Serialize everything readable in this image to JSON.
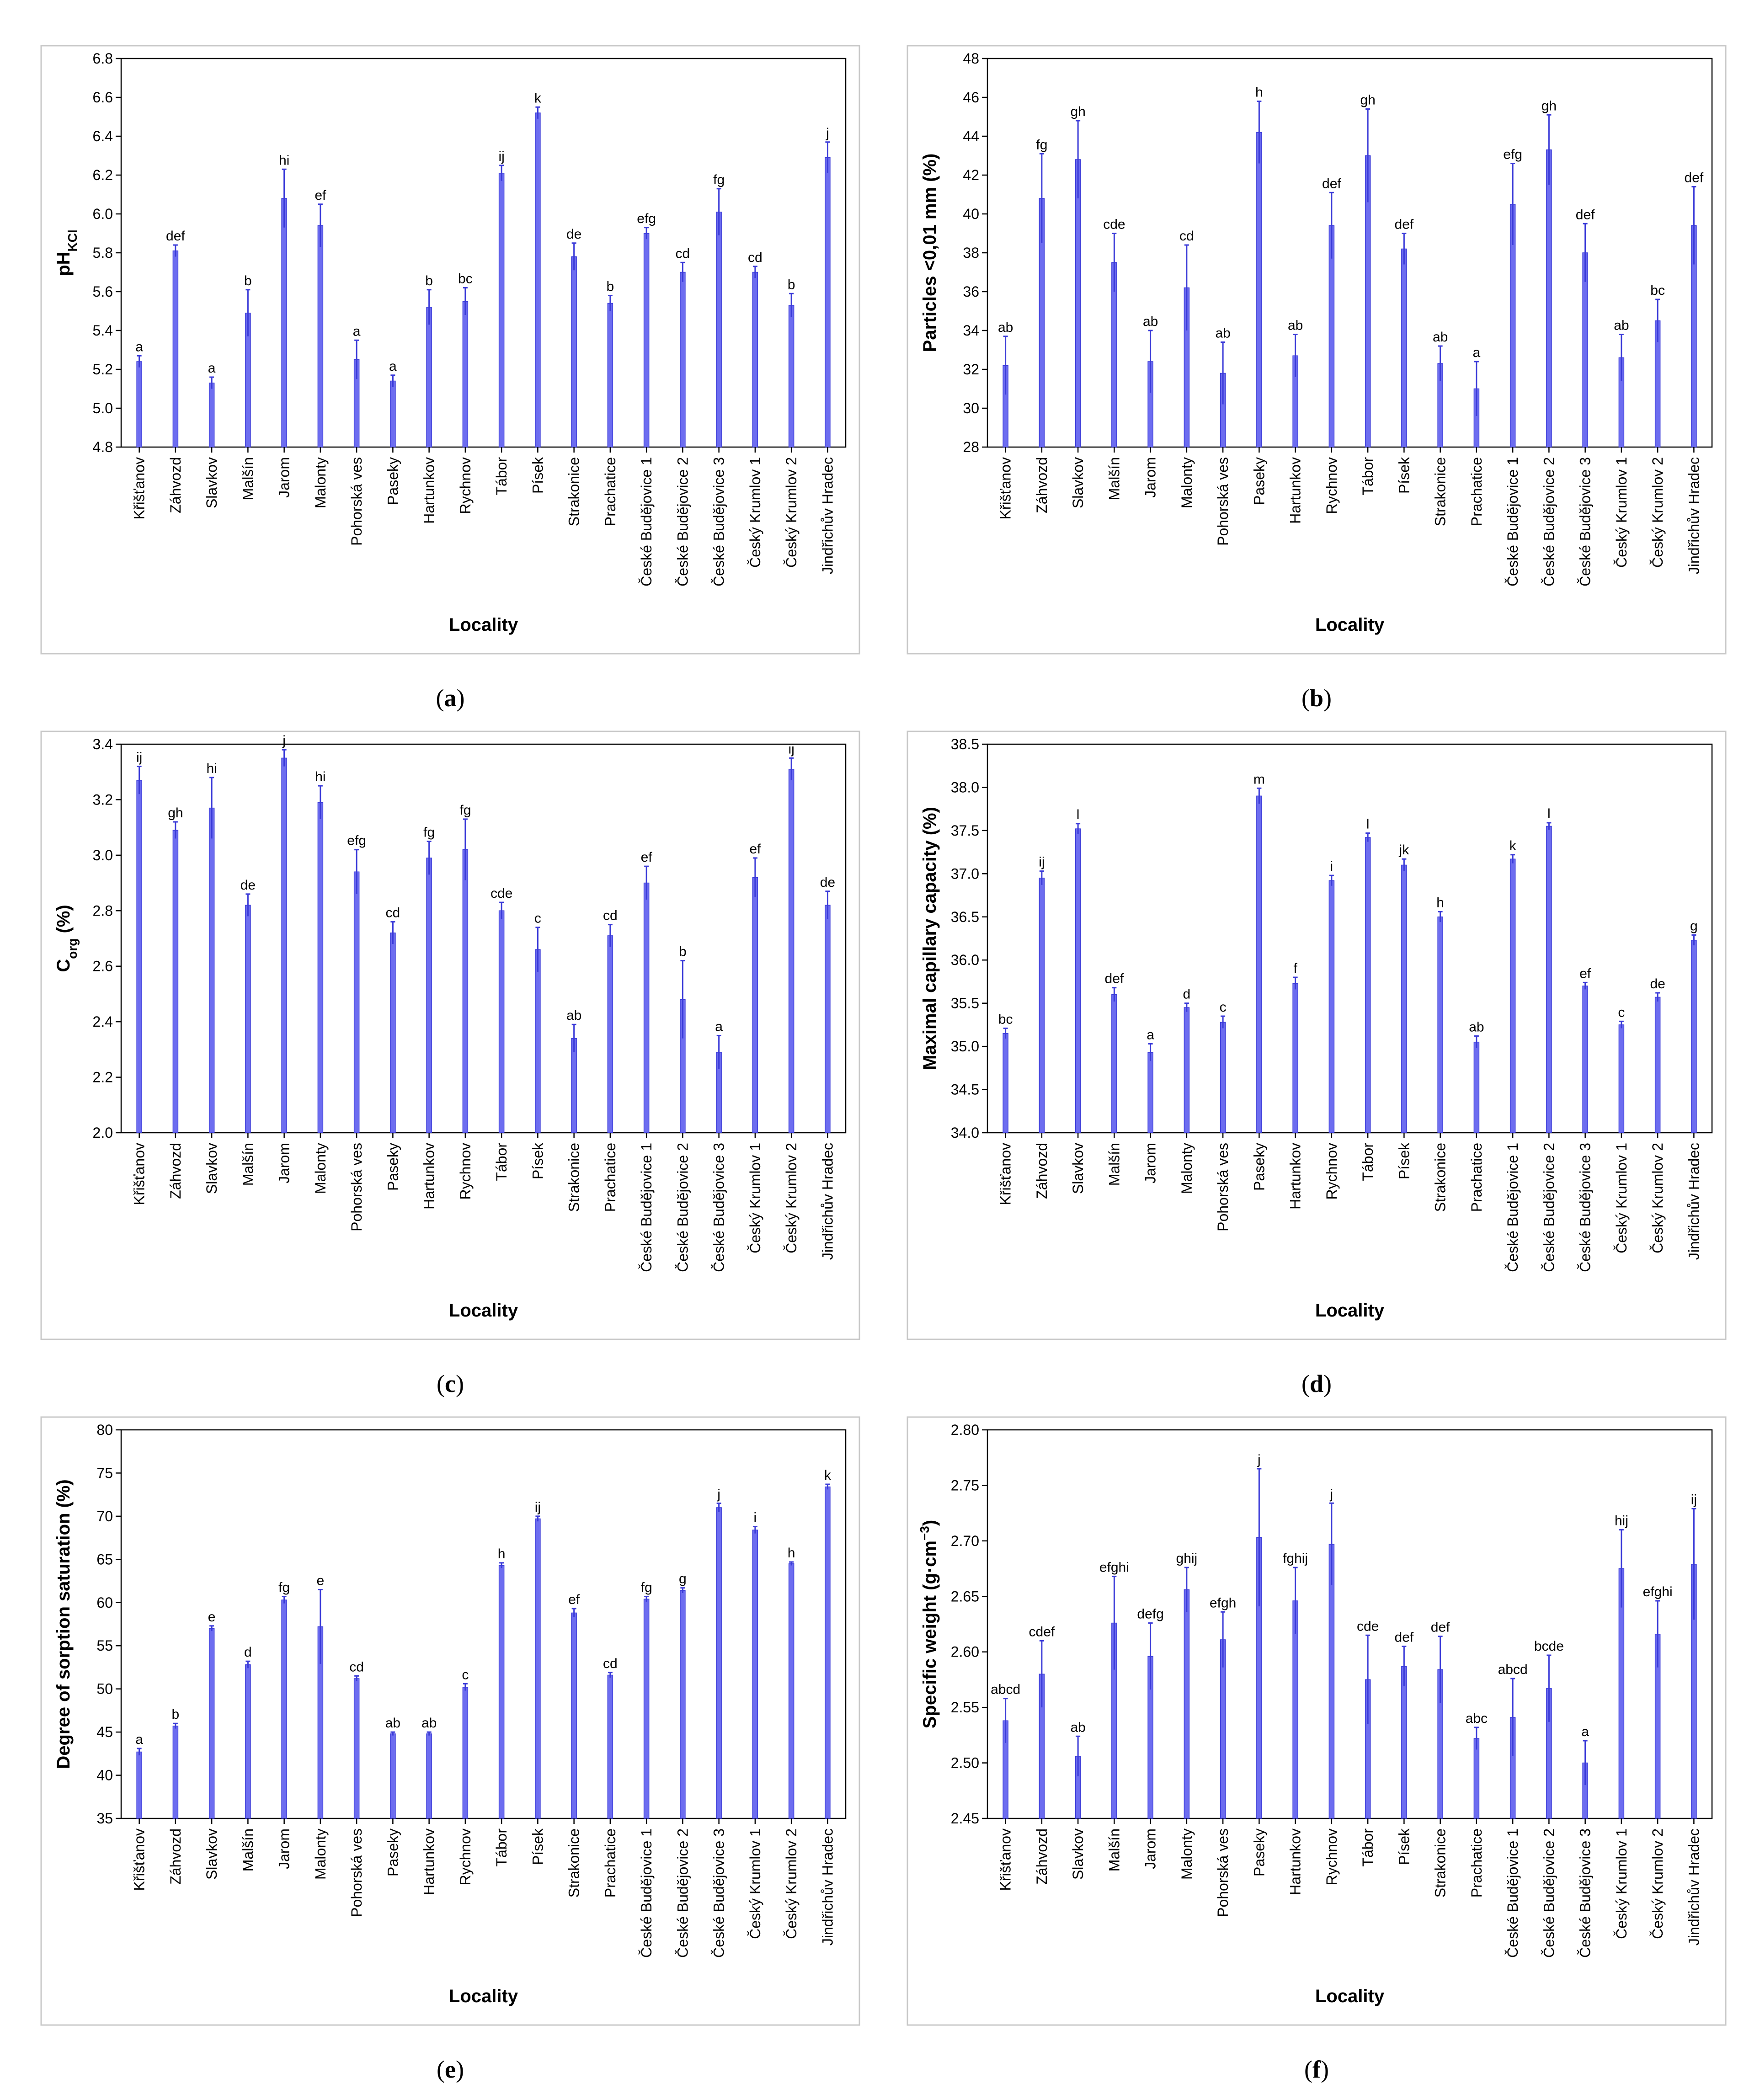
{
  "localities": [
    "Křišťanov",
    "Záhvozd",
    "Slavkov",
    "Malšín",
    "Jarom",
    "Malonty",
    "Pohorská ves",
    "Paseky",
    "Hartunkov",
    "Rychnov",
    "Tábor",
    "Písek",
    "Strakonice",
    "Prachatice",
    "České Budějovice 1",
    "České Budějovice 2",
    "České Budějovice 3",
    "Český Krumlov 1",
    "Český Krumlov 2",
    "Jindřichův Hradec"
  ],
  "bar_color": "#6d6df0",
  "whisker_color": "#3b3bd8",
  "chart_data": [
    {
      "id": "a",
      "caption": "(a)",
      "type": "bar",
      "ylabel": "pH",
      "ylabel_sub": "KCl",
      "xlabel": "Locality",
      "ylim": [
        4.8,
        6.8
      ],
      "yticks": [
        "4.8",
        "5.0",
        "5.2",
        "5.4",
        "5.6",
        "5.8",
        "6.0",
        "6.2",
        "6.4",
        "6.6",
        "6.8"
      ],
      "values": [
        5.24,
        5.81,
        5.13,
        5.49,
        6.08,
        5.94,
        5.25,
        5.14,
        5.52,
        5.55,
        6.21,
        6.52,
        5.78,
        5.54,
        5.9,
        5.7,
        6.01,
        5.7,
        5.53,
        6.29
      ],
      "errors": [
        0.03,
        0.03,
        0.03,
        0.12,
        0.15,
        0.11,
        0.1,
        0.03,
        0.09,
        0.07,
        0.04,
        0.03,
        0.07,
        0.04,
        0.03,
        0.05,
        0.12,
        0.03,
        0.06,
        0.08
      ],
      "letters": [
        "a",
        "def",
        "a",
        "b",
        "hi",
        "ef",
        "a",
        "a",
        "b",
        "bc",
        "ij",
        "k",
        "de",
        "b",
        "efg",
        "cd",
        "fg",
        "cd",
        "b",
        "j"
      ]
    },
    {
      "id": "b",
      "caption": "(b)",
      "type": "bar",
      "ylabel": "Particles <0,01 mm (%)",
      "ylabel_sub": "",
      "xlabel": "Locality",
      "ylim": [
        28,
        48
      ],
      "yticks": [
        "28",
        "30",
        "32",
        "34",
        "36",
        "38",
        "40",
        "42",
        "44",
        "46",
        "48"
      ],
      "values": [
        32.2,
        40.8,
        42.8,
        37.5,
        32.4,
        36.2,
        31.8,
        44.2,
        32.7,
        39.4,
        43.0,
        38.2,
        32.3,
        31.0,
        40.5,
        43.3,
        38.0,
        32.6,
        34.5,
        39.4
      ],
      "errors": [
        1.5,
        2.3,
        2.0,
        1.5,
        1.6,
        2.2,
        1.6,
        1.6,
        1.1,
        1.7,
        2.4,
        0.8,
        0.9,
        1.4,
        2.1,
        1.8,
        1.5,
        1.2,
        1.1,
        2.0
      ],
      "letters": [
        "ab",
        "fg",
        "gh",
        "cde",
        "ab",
        "cd",
        "ab",
        "h",
        "ab",
        "def",
        "gh",
        "def",
        "ab",
        "a",
        "efg",
        "gh",
        "def",
        "ab",
        "bc",
        "def"
      ]
    },
    {
      "id": "c",
      "caption": "(c)",
      "type": "bar",
      "ylabel": "C",
      "ylabel_sub": "org",
      "ylabel_suffix": " (%)",
      "xlabel": "Locality",
      "ylim": [
        2.0,
        3.4
      ],
      "yticks": [
        "2.0",
        "2.2",
        "2.4",
        "2.6",
        "2.8",
        "3.0",
        "3.2",
        "3.4"
      ],
      "values": [
        3.27,
        3.09,
        3.17,
        2.82,
        3.35,
        3.19,
        2.94,
        2.72,
        2.99,
        3.02,
        2.8,
        2.66,
        2.34,
        2.71,
        2.9,
        2.48,
        2.29,
        2.92,
        3.31,
        2.82
      ],
      "errors": [
        0.05,
        0.03,
        0.11,
        0.04,
        0.03,
        0.06,
        0.08,
        0.04,
        0.06,
        0.11,
        0.03,
        0.08,
        0.05,
        0.04,
        0.06,
        0.14,
        0.06,
        0.07,
        0.04,
        0.05
      ],
      "letters": [
        "ij",
        "gh",
        "hi",
        "de",
        "j",
        "hi",
        "efg",
        "cd",
        "fg",
        "fg",
        "cde",
        "c",
        "ab",
        "cd",
        "ef",
        "b",
        "a",
        "ef",
        "ij",
        "de"
      ]
    },
    {
      "id": "d",
      "caption": "(d)",
      "type": "bar",
      "ylabel": "Maximal capillary capacity (%)",
      "ylabel_sub": "",
      "xlabel": "Locality",
      "ylim": [
        34.0,
        38.5
      ],
      "yticks": [
        "34.0",
        "34.5",
        "35.0",
        "35.5",
        "36.0",
        "36.5",
        "37.0",
        "37.5",
        "38.0",
        "38.5"
      ],
      "values": [
        35.15,
        36.95,
        37.52,
        35.6,
        34.93,
        35.45,
        35.28,
        37.9,
        35.73,
        36.92,
        37.42,
        37.1,
        36.5,
        35.05,
        37.17,
        37.55,
        35.7,
        35.25,
        35.57,
        36.23
      ],
      "errors": [
        0.06,
        0.08,
        0.06,
        0.08,
        0.1,
        0.05,
        0.07,
        0.09,
        0.07,
        0.06,
        0.05,
        0.07,
        0.06,
        0.07,
        0.05,
        0.04,
        0.04,
        0.04,
        0.05,
        0.06
      ],
      "letters": [
        "bc",
        "ij",
        "l",
        "def",
        "a",
        "d",
        "c",
        "m",
        "f",
        "i",
        "l",
        "jk",
        "h",
        "ab",
        "k",
        "l",
        "ef",
        "c",
        "de",
        "g"
      ]
    },
    {
      "id": "e",
      "caption": "(e)",
      "type": "bar",
      "ylabel": "Degree of sorption saturation (%)",
      "ylabel_sub": "",
      "xlabel": "Locality",
      "ylim": [
        35,
        80
      ],
      "yticks": [
        "35",
        "40",
        "45",
        "50",
        "55",
        "60",
        "65",
        "70",
        "75",
        "80"
      ],
      "values": [
        42.7,
        45.7,
        57.0,
        52.8,
        60.3,
        57.2,
        51.2,
        44.8,
        44.8,
        50.2,
        64.3,
        69.7,
        58.8,
        51.6,
        60.4,
        61.4,
        71.0,
        68.4,
        64.5,
        73.4
      ],
      "errors": [
        0.4,
        0.3,
        0.3,
        0.4,
        0.4,
        4.3,
        0.3,
        0.2,
        0.2,
        0.4,
        0.3,
        0.3,
        0.5,
        0.3,
        0.3,
        0.3,
        0.5,
        0.4,
        0.2,
        0.3
      ],
      "letters": [
        "a",
        "b",
        "e",
        "d",
        "fg",
        "e",
        "cd",
        "ab",
        "ab",
        "c",
        "h",
        "ij",
        "ef",
        "cd",
        "fg",
        "g",
        "j",
        "i",
        "h",
        "k"
      ]
    },
    {
      "id": "f",
      "caption": "(f)",
      "type": "bar",
      "ylabel": "Specific weight  (g·cm",
      "ylabel_sup": "−3",
      "ylabel_suffix": ")",
      "xlabel": "Locality",
      "ylim": [
        2.45,
        2.8
      ],
      "yticks": [
        "2.45",
        "2.50",
        "2.55",
        "2.60",
        "2.65",
        "2.70",
        "2.75",
        "2.80"
      ],
      "values": [
        2.538,
        2.58,
        2.506,
        2.626,
        2.596,
        2.656,
        2.611,
        2.703,
        2.646,
        2.697,
        2.575,
        2.587,
        2.584,
        2.522,
        2.541,
        2.567,
        2.5,
        2.675,
        2.616,
        2.679
      ],
      "errors": [
        0.02,
        0.03,
        0.018,
        0.042,
        0.03,
        0.02,
        0.025,
        0.062,
        0.03,
        0.037,
        0.04,
        0.018,
        0.03,
        0.01,
        0.035,
        0.03,
        0.02,
        0.035,
        0.03,
        0.05
      ],
      "letters": [
        "abcd",
        "cdef",
        "ab",
        "efghi",
        "defg",
        "ghij",
        "efgh",
        "j",
        "fghij",
        "j",
        "cde",
        "def",
        "def",
        "abc",
        "abcd",
        "bcde",
        "a",
        "hij",
        "efghi",
        "ij"
      ]
    }
  ]
}
